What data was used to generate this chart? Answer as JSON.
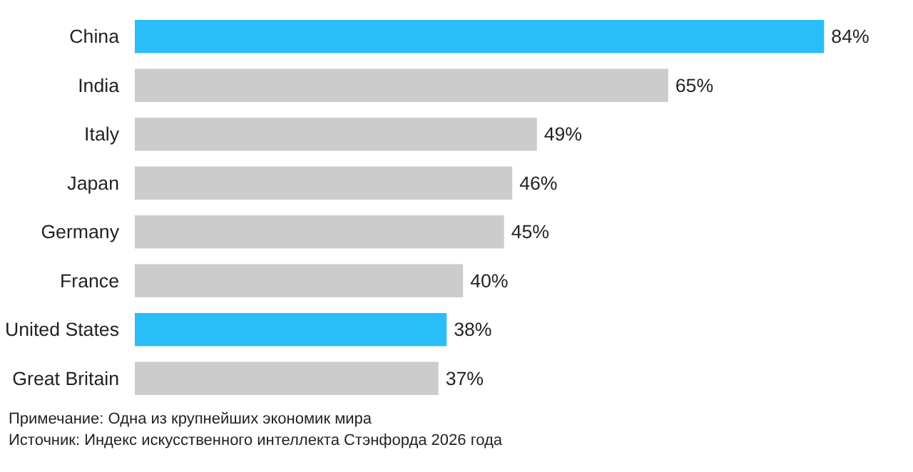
{
  "chart_data": {
    "type": "bar",
    "orientation": "horizontal",
    "categories": [
      "China",
      "India",
      "Italy",
      "Japan",
      "Germany",
      "France",
      "United States",
      "Great Britain"
    ],
    "values": [
      84,
      65,
      49,
      46,
      45,
      40,
      38,
      37
    ],
    "colors": [
      "#29bdf9",
      "#cccccc",
      "#cccccc",
      "#cccccc",
      "#cccccc",
      "#cccccc",
      "#29bdf9",
      "#cccccc"
    ],
    "value_labels": [
      "84%",
      "65%",
      "49%",
      "46%",
      "45%",
      "40%",
      "38%",
      "37%"
    ],
    "grid": false,
    "annotations": [
      "Примечание: Одна из крупнейших экономик мира",
      "Источник: Индекс искусственного интеллекта Стэнфорда 2026 года"
    ]
  }
}
